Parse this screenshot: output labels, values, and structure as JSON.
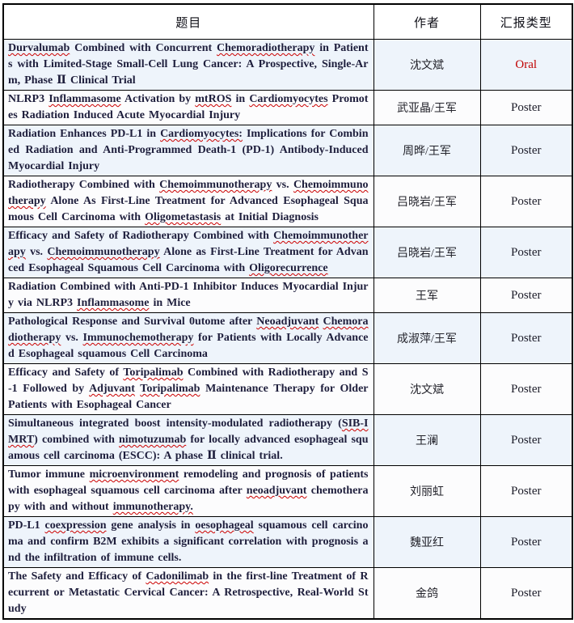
{
  "colors": {
    "misspell_underline": "#CC0000",
    "oral_text": "#C00000",
    "stripe_odd": "#EEF4FB",
    "stripe_even": "#FCFCFD",
    "border": "#000000",
    "title_text": "#1E1E3C"
  },
  "table": {
    "headers": [
      {
        "label": "题目"
      },
      {
        "label": "作者"
      },
      {
        "label": "汇报类型"
      }
    ],
    "rows": [
      {
        "title_segments": [
          {
            "text": "Durvalumab",
            "misspelled": true
          },
          {
            "text": " Combined with Concurrent "
          },
          {
            "text": "Chemoradiotherapy",
            "misspelled": true
          },
          {
            "text": " in Patients with Limited-Stage Small-Cell Lung Cancer: A Prospective, Single-Arm, Phase Ⅱ Clinical Trial"
          }
        ],
        "author": "沈文斌",
        "report_type": "Oral",
        "report_type_color": "#C00000"
      },
      {
        "title_segments": [
          {
            "text": "NLRP3 "
          },
          {
            "text": "Inflammasome",
            "misspelled": true
          },
          {
            "text": " Activation by "
          },
          {
            "text": "mtROS",
            "misspelled": true
          },
          {
            "text": " in "
          },
          {
            "text": "Cardiomyocytes",
            "misspelled": true
          },
          {
            "text": " Promotes Radiation Induced Acute Myocardial Injury"
          }
        ],
        "author": "武亚晶/王军",
        "report_type": "Poster"
      },
      {
        "title_segments": [
          {
            "text": "Radiation Enhances PD-L1 in "
          },
          {
            "text": "Cardiomyocytes:",
            "misspelled": true
          },
          {
            "text": " Implications for Combined Radiation and Anti-Programmed Death-1 (PD-1) Antibody-Induced Myocardial Injury"
          }
        ],
        "author": "周晔/王军",
        "report_type": "Poster"
      },
      {
        "title_segments": [
          {
            "text": "Radiotherapy Combined with "
          },
          {
            "text": "Chemoimmunotherapy",
            "misspelled": true
          },
          {
            "text": " vs. "
          },
          {
            "text": "Chemoimmunotherapy",
            "misspelled": true
          },
          {
            "text": " Alone As First-Line Treatment for Advanced Esophageal Squamous Cell Carcinoma with "
          },
          {
            "text": "Oligometastasis",
            "misspelled": true
          },
          {
            "text": " at Initial Diagnosis"
          }
        ],
        "author": "吕晓岩/王军",
        "report_type": "Poster"
      },
      {
        "title_segments": [
          {
            "text": "Efficacy and Safety of Radiotherapy Combined with "
          },
          {
            "text": "Chemoimmunotherapy",
            "misspelled": true
          },
          {
            "text": " vs. "
          },
          {
            "text": "Chemoimmunotherapy",
            "misspelled": true
          },
          {
            "text": " Alone as First-Line Treatment for Advanced Esophageal Squamous Cell Carcinoma with "
          },
          {
            "text": "Oligorecurrence",
            "misspelled": true
          }
        ],
        "author": "吕晓岩/王军",
        "report_type": "Poster"
      },
      {
        "title_segments": [
          {
            "text": "Radiation Combined with Anti-PD-1 Inhibitor Induces Myocardial Injury via NLRP3 "
          },
          {
            "text": "Inflammasome",
            "misspelled": true
          },
          {
            "text": " in Mice"
          }
        ],
        "author": "王军",
        "report_type": "Poster"
      },
      {
        "title_segments": [
          {
            "text": "Pathological Response and Survival 0utome after "
          },
          {
            "text": "Neoadjuvant",
            "misspelled": true
          },
          {
            "text": " "
          },
          {
            "text": "Chemoradiotherapy",
            "misspelled": true
          },
          {
            "text": " vs. "
          },
          {
            "text": "Immunochemotherapy",
            "misspelled": true
          },
          {
            "text": " for Patients with Locally Advanced Esophageal squamous Cell Carcinoma"
          }
        ],
        "author": "成淑萍/王军",
        "report_type": "Poster"
      },
      {
        "title_segments": [
          {
            "text": "Efficacy and Safety of "
          },
          {
            "text": "Toripalimab",
            "misspelled": true
          },
          {
            "text": " Combined with Radiotherapy and S-1 Followed by "
          },
          {
            "text": "Adjuvant",
            "misspelled": true
          },
          {
            "text": " "
          },
          {
            "text": "Toripalimab",
            "misspelled": true
          },
          {
            "text": " Maintenance Therapy for Older Patients with Esophageal Cancer"
          }
        ],
        "author": "沈文斌",
        "report_type": "Poster"
      },
      {
        "title_segments": [
          {
            "text": "Simultaneous integrated boost intensity-modulated radiotherapy ("
          },
          {
            "text": "SIB-IMRT",
            "misspelled": true
          },
          {
            "text": ") combined with "
          },
          {
            "text": "nimotuzumab",
            "misspelled": true
          },
          {
            "text": " for locally advanced esophageal squamous cell carcinoma (ESCC): A phase Ⅱ clinical trial."
          }
        ],
        "author": "王澜",
        "report_type": "Poster"
      },
      {
        "title_segments": [
          {
            "text": "Tumor immune "
          },
          {
            "text": "microenvironment",
            "misspelled": true
          },
          {
            "text": " remodeling and prognosis of patients with esophageal squamous cell carcinoma after "
          },
          {
            "text": "neoadjuvant",
            "misspelled": true
          },
          {
            "text": " chemotherapy with and without "
          },
          {
            "text": "immunotherapy.",
            "misspelled": true
          }
        ],
        "author": "刘丽虹",
        "report_type": "Poster"
      },
      {
        "title_segments": [
          {
            "text": "PD-L1 "
          },
          {
            "text": "coexpression",
            "misspelled": true
          },
          {
            "text": " gene analysis in "
          },
          {
            "text": "oesophageal",
            "misspelled": true
          },
          {
            "text": " squamous cell carcinoma and confirm B2M exhibits a significant correlation with prognosis and the infiltration of immune cells."
          }
        ],
        "author": "魏亚红",
        "report_type": "Poster"
      },
      {
        "title_segments": [
          {
            "text": "The Safety and Efficacy of "
          },
          {
            "text": "Cadonilimab",
            "misspelled": true
          },
          {
            "text": " in the first-line Treatment of Recurrent or Metastatic Cervical Cancer: A Retrospective, Real-World Study"
          }
        ],
        "author": "金鸽",
        "report_type": "Poster"
      }
    ]
  }
}
